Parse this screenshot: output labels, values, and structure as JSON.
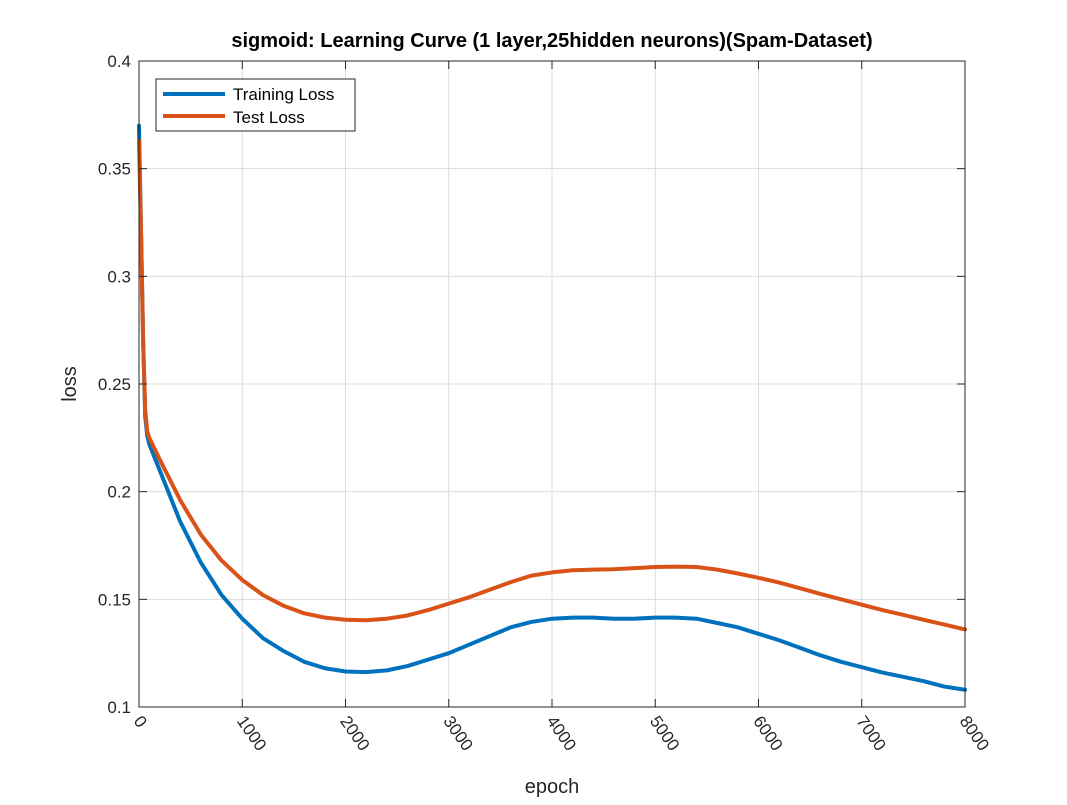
{
  "chart_data": {
    "type": "line",
    "title": "sigmoid: Learning Curve (1 layer,25hidden neurons)(Spam-Dataset)",
    "xlabel": "epoch",
    "ylabel": "loss",
    "xlim": [
      0,
      8000
    ],
    "ylim": [
      0.1,
      0.4
    ],
    "xticks": [
      0,
      1000,
      2000,
      3000,
      4000,
      5000,
      6000,
      7000,
      8000
    ],
    "yticks": [
      0.1,
      0.15,
      0.2,
      0.25,
      0.3,
      0.35,
      0.4
    ],
    "xtick_labels": [
      "0",
      "1000",
      "2000",
      "3000",
      "4000",
      "5000",
      "6000",
      "7000",
      "8000"
    ],
    "ytick_labels": [
      "0.1",
      "0.15",
      "0.2",
      "0.25",
      "0.3",
      "0.35",
      "0.4"
    ],
    "grid": true,
    "legend_position": "top-left",
    "series": [
      {
        "name": "Training Loss",
        "color": "#0072BD",
        "x": [
          0,
          20,
          40,
          60,
          80,
          100,
          200,
          400,
          600,
          800,
          1000,
          1200,
          1400,
          1600,
          1800,
          2000,
          2200,
          2400,
          2600,
          2800,
          3000,
          3200,
          3400,
          3600,
          3800,
          4000,
          4200,
          4400,
          4600,
          4800,
          5000,
          5200,
          5400,
          5600,
          5800,
          6000,
          6200,
          6400,
          6600,
          6800,
          7000,
          7200,
          7400,
          7600,
          7800,
          8000
        ],
        "y": [
          0.37,
          0.32,
          0.27,
          0.235,
          0.226,
          0.222,
          0.21,
          0.186,
          0.167,
          0.152,
          0.141,
          0.132,
          0.126,
          0.121,
          0.118,
          0.1165,
          0.1162,
          0.117,
          0.119,
          0.122,
          0.125,
          0.129,
          0.133,
          0.137,
          0.1395,
          0.141,
          0.1415,
          0.1415,
          0.141,
          0.141,
          0.1415,
          0.1415,
          0.141,
          0.139,
          0.137,
          0.134,
          0.131,
          0.1275,
          0.124,
          0.121,
          0.1185,
          0.116,
          0.114,
          0.112,
          0.1095,
          0.108
        ]
      },
      {
        "name": "Test Loss",
        "color": "#D95319",
        "x": [
          0,
          20,
          40,
          60,
          80,
          100,
          200,
          400,
          600,
          800,
          1000,
          1200,
          1400,
          1600,
          1800,
          2000,
          2200,
          2400,
          2600,
          2800,
          3000,
          3200,
          3400,
          3600,
          3800,
          4000,
          4200,
          4400,
          4600,
          4800,
          5000,
          5200,
          5400,
          5600,
          5800,
          6000,
          6200,
          6400,
          6600,
          6800,
          7000,
          7200,
          7400,
          7600,
          7800,
          8000
        ],
        "y": [
          0.363,
          0.32,
          0.27,
          0.238,
          0.228,
          0.225,
          0.215,
          0.196,
          0.18,
          0.168,
          0.159,
          0.152,
          0.147,
          0.1435,
          0.1415,
          0.1405,
          0.1403,
          0.141,
          0.1425,
          0.145,
          0.148,
          0.151,
          0.1545,
          0.158,
          0.161,
          0.1625,
          0.1635,
          0.1638,
          0.164,
          0.1645,
          0.165,
          0.1652,
          0.165,
          0.1638,
          0.162,
          0.16,
          0.1578,
          0.1552,
          0.1525,
          0.15,
          0.1475,
          0.145,
          0.1428,
          0.1405,
          0.1383,
          0.136
        ]
      }
    ]
  }
}
